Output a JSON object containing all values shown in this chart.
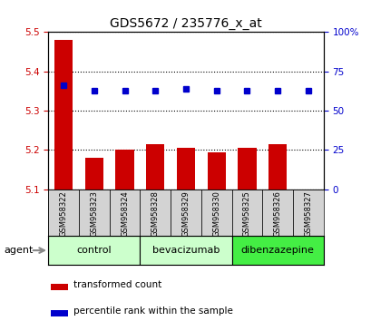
{
  "title": "GDS5672 / 235776_x_at",
  "samples": [
    "GSM958322",
    "GSM958323",
    "GSM958324",
    "GSM958328",
    "GSM958329",
    "GSM958330",
    "GSM958325",
    "GSM958326",
    "GSM958327"
  ],
  "bar_values": [
    5.48,
    5.18,
    5.2,
    5.215,
    5.205,
    5.195,
    5.205,
    5.215,
    5.1
  ],
  "percentile_values": [
    66,
    63,
    63,
    63,
    64,
    63,
    63,
    63,
    63
  ],
  "ylim_left": [
    5.1,
    5.5
  ],
  "ylim_right": [
    0,
    100
  ],
  "yticks_left": [
    5.1,
    5.2,
    5.3,
    5.4,
    5.5
  ],
  "yticks_right": [
    0,
    25,
    50,
    75,
    100
  ],
  "bar_color": "#cc0000",
  "dot_color": "#0000cc",
  "bar_bottom": 5.1,
  "groups": [
    {
      "label": "control",
      "indices": [
        0,
        1,
        2
      ],
      "color": "#ccffcc"
    },
    {
      "label": "bevacizumab",
      "indices": [
        3,
        4,
        5
      ],
      "color": "#ccffcc"
    },
    {
      "label": "dibenzazepine",
      "indices": [
        6,
        7,
        8
      ],
      "color": "#44ee44"
    }
  ],
  "agent_label": "agent",
  "legend_bar_label": "transformed count",
  "legend_dot_label": "percentile rank within the sample",
  "background_color": "#ffffff",
  "plot_bg_color": "#ffffff",
  "tick_label_color_left": "#cc0000",
  "tick_label_color_right": "#0000cc",
  "title_fontsize": 10,
  "axis_fontsize": 7.5,
  "legend_fontsize": 7.5,
  "sample_label_fontsize": 6,
  "group_label_fontsize": 8
}
